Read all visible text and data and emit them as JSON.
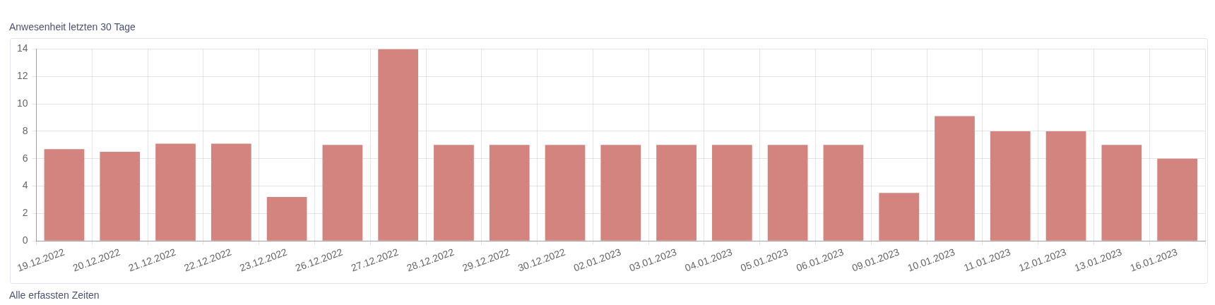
{
  "chart_data": {
    "type": "bar",
    "title": "Anwesenheit letzten 30 Tage",
    "annotations": [
      "Alle erfassten Zeiten"
    ],
    "categories": [
      "19.12.2022",
      "20.12.2022",
      "21.12.2022",
      "22.12.2022",
      "23.12.2022",
      "26.12.2022",
      "27.12.2022",
      "28.12.2022",
      "29.12.2022",
      "30.12.2022",
      "02.01.2023",
      "03.01.2023",
      "04.01.2023",
      "05.01.2023",
      "06.01.2023",
      "09.01.2023",
      "10.01.2023",
      "11.01.2023",
      "12.01.2023",
      "13.01.2023",
      "16.01.2023"
    ],
    "values": [
      6.7,
      6.5,
      7.1,
      7.1,
      3.2,
      7,
      14,
      7,
      7,
      7,
      7,
      7,
      7,
      7,
      7,
      3.5,
      9.1,
      8,
      8,
      7,
      6
    ],
    "color": "#d4847f",
    "ylim": [
      0,
      14
    ],
    "yticks": [
      0,
      2,
      4,
      6,
      8,
      10,
      12,
      14
    ],
    "grid": true
  }
}
